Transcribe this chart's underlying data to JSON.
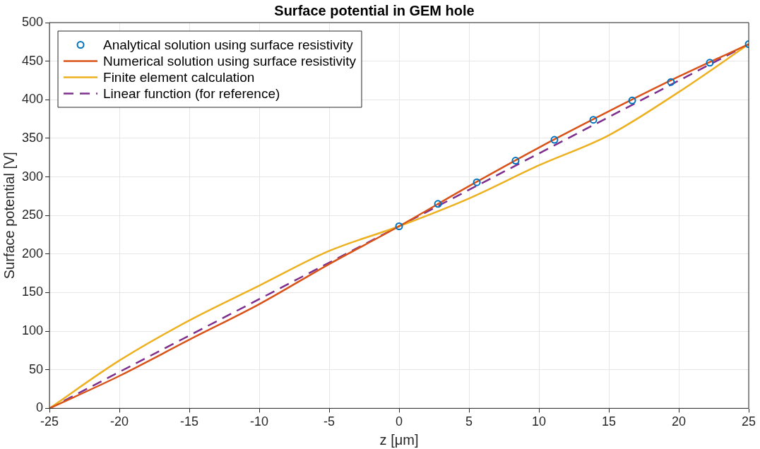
{
  "chart_data": {
    "type": "line",
    "title": "Surface potential in GEM hole",
    "xlabel": "z [μm]",
    "ylabel": "Surface potential [V]",
    "xlim": [
      -25,
      25
    ],
    "xticks": [
      -25,
      -20,
      -15,
      -10,
      -5,
      0,
      5,
      10,
      15,
      20,
      25
    ],
    "ylim": [
      0,
      500
    ],
    "yticks": [
      0,
      50,
      100,
      150,
      200,
      250,
      300,
      350,
      400,
      450,
      500
    ],
    "grid": true,
    "legend": "top left",
    "series": [
      {
        "name": "Analytical solution using surface resistivity",
        "type": "scatter",
        "marker": "circle",
        "color": "#0072bd",
        "x": [
          0,
          2.78,
          5.56,
          8.33,
          11.11,
          13.89,
          16.67,
          19.44,
          22.22,
          25
        ],
        "values": [
          236,
          265,
          293,
          321,
          348,
          374,
          399,
          423,
          448,
          472
        ]
      },
      {
        "name": "Numerical solution using surface resistivity",
        "color": "#d95319",
        "x": [
          -25,
          -20,
          -15,
          -10,
          -5,
          0,
          5,
          10,
          15,
          20,
          25
        ],
        "values": [
          0,
          42,
          89,
          135,
          187,
          236,
          288,
          338,
          385,
          430,
          472
        ]
      },
      {
        "name": "Finite element calculation",
        "color": "#edb120",
        "x": [
          -25,
          -20,
          -15,
          -10,
          -5,
          0,
          5,
          10,
          15,
          20,
          25
        ],
        "values": [
          0,
          62,
          114,
          159,
          204,
          236,
          272,
          315,
          354,
          410,
          472
        ]
      },
      {
        "name": "Linear function (for reference)",
        "line_style": "dashed",
        "color": "#7e2f8e",
        "x": [
          -25,
          0,
          25
        ],
        "values": [
          0,
          236,
          472
        ]
      }
    ]
  }
}
